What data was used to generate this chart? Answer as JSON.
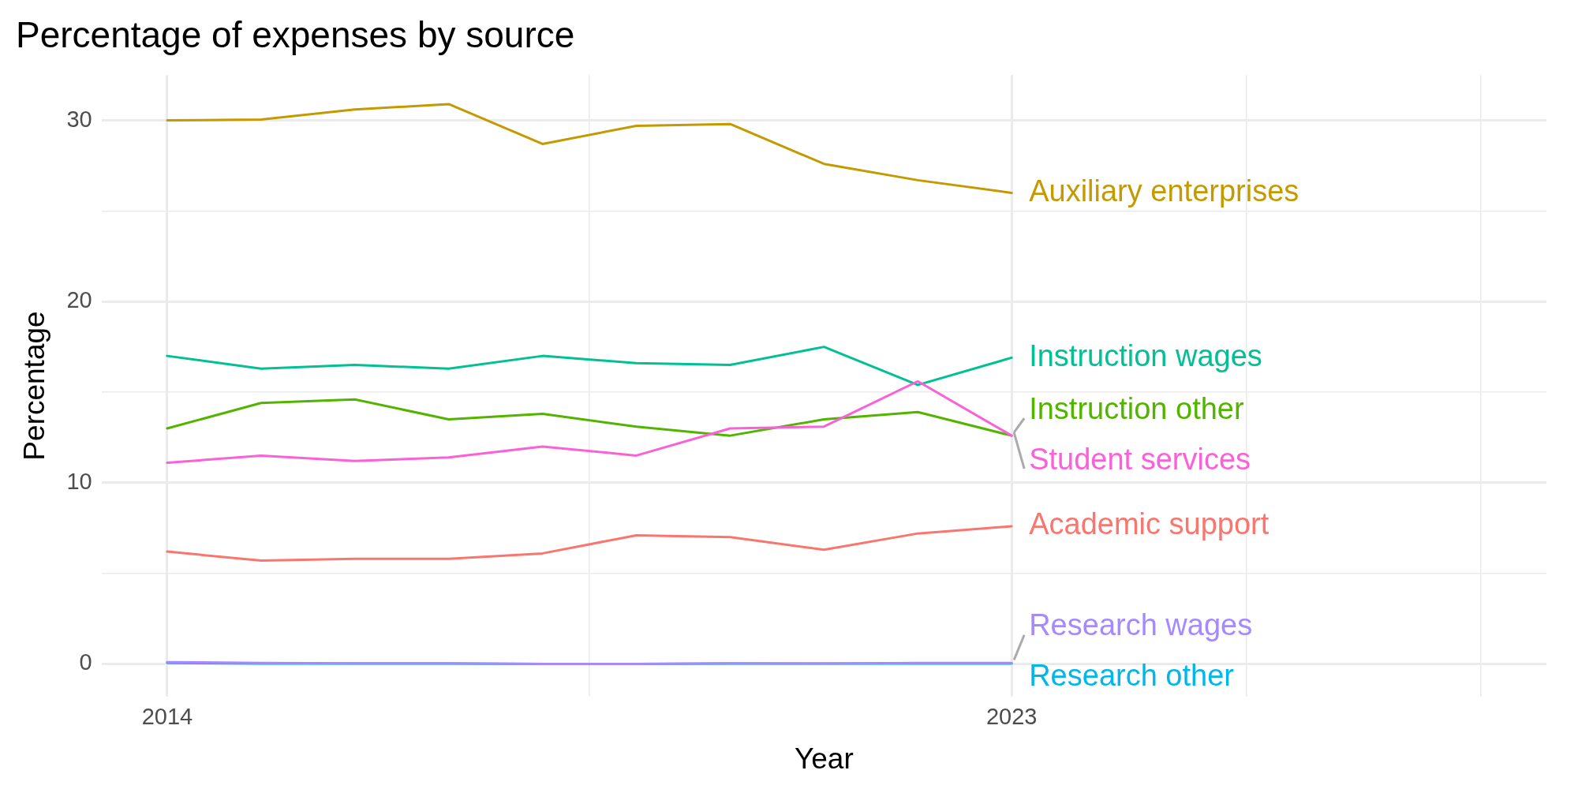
{
  "chart_data": {
    "type": "line",
    "title": "Percentage of expenses by source",
    "xlabel": "Year",
    "ylabel": "Percentage",
    "x": [
      2014,
      2015,
      2016,
      2017,
      2018,
      2019,
      2020,
      2021,
      2022,
      2023
    ],
    "series": [
      {
        "name": "Auxiliary enterprises",
        "color": "#c49a00",
        "values": [
          30.0,
          30.05,
          30.6,
          30.9,
          28.7,
          29.7,
          29.8,
          27.6,
          26.7,
          26.0
        ]
      },
      {
        "name": "Instruction wages",
        "color": "#00c094",
        "values": [
          17.0,
          16.3,
          16.5,
          16.3,
          17.0,
          16.6,
          16.5,
          17.5,
          15.4,
          16.9
        ]
      },
      {
        "name": "Instruction other",
        "color": "#53b400",
        "values": [
          13.0,
          14.4,
          14.6,
          13.5,
          13.8,
          13.1,
          12.6,
          13.5,
          13.9,
          12.6
        ]
      },
      {
        "name": "Student services",
        "color": "#fb61d7",
        "values": [
          11.1,
          11.5,
          11.2,
          11.4,
          12.0,
          11.5,
          13.0,
          13.1,
          15.6,
          12.6
        ]
      },
      {
        "name": "Academic support",
        "color": "#f8766d",
        "values": [
          6.2,
          5.7,
          5.8,
          5.8,
          6.1,
          7.1,
          7.0,
          6.3,
          7.2,
          7.6
        ]
      },
      {
        "name": "Research other",
        "color": "#00b6eb",
        "values": [
          0.05,
          0.02,
          0.02,
          0.02,
          0,
          0,
          0.02,
          0.02,
          0.02,
          0.02
        ]
      },
      {
        "name": "Research wages",
        "color": "#a58aff",
        "values": [
          0.1,
          0.05,
          0.03,
          0.03,
          0,
          0,
          0.03,
          0.02,
          0.05,
          0.05
        ]
      }
    ],
    "xlim": [
      2013.3,
      2028.7
    ],
    "ylim": [
      -1.8,
      32.5
    ],
    "xticks": [
      2014,
      {
        "value": 2018.5,
        "label": null
      },
      2023,
      {
        "value": 2025.5,
        "label": null
      },
      {
        "value": 2028,
        "label": null
      }
    ],
    "yticks": [
      0,
      {
        "value": 5,
        "label": null
      },
      10,
      {
        "value": 15,
        "label": null
      },
      20,
      {
        "value": 25,
        "label": null
      },
      30
    ],
    "grid": true,
    "legend": false,
    "marker": "none",
    "line_style": "solid"
  }
}
